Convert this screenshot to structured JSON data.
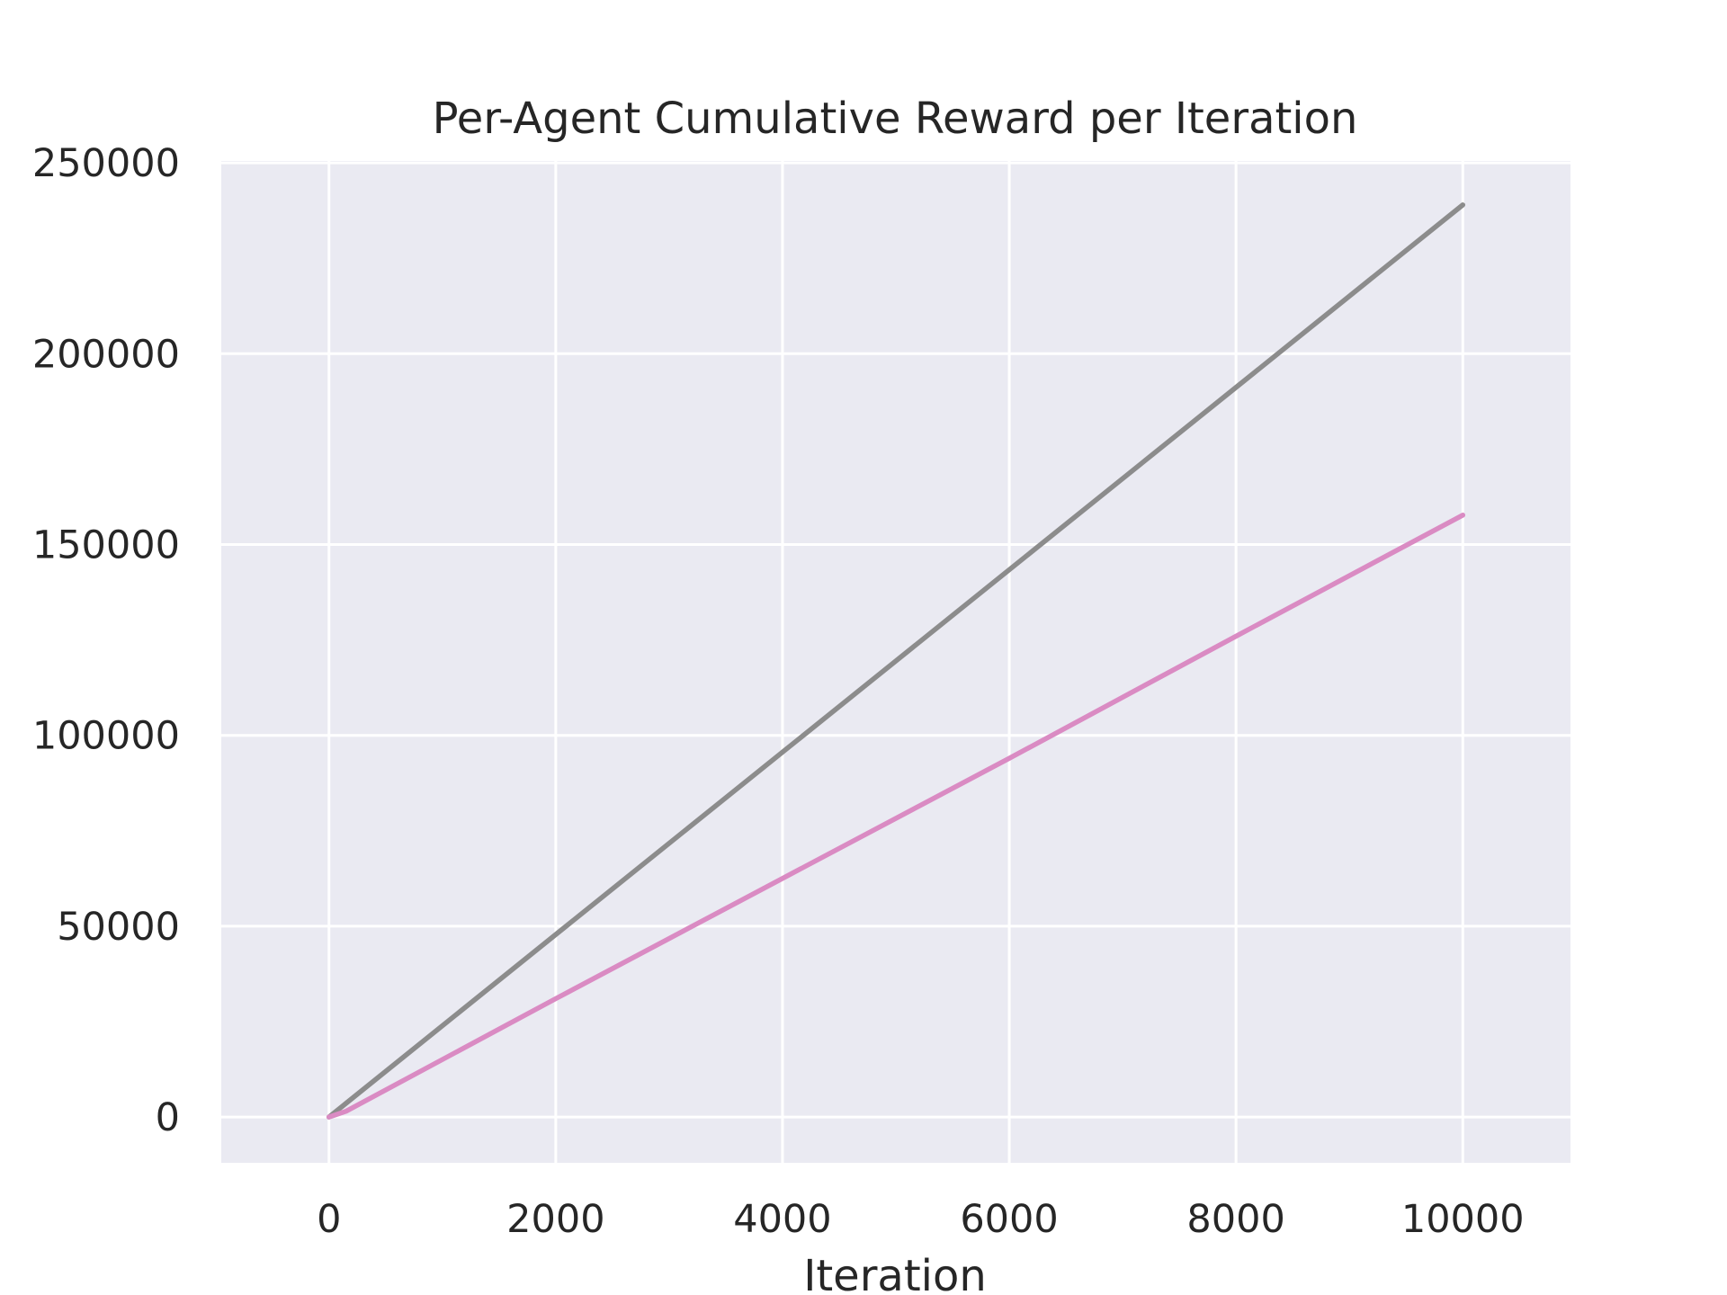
{
  "chart_data": {
    "type": "line",
    "title": "Per-Agent Cumulative Reward per Iteration",
    "xlabel": "Iteration",
    "ylabel": "",
    "xlim": [
      -950,
      10950
    ],
    "ylim": [
      -12000,
      250500
    ],
    "xticks": [
      "0",
      "2000",
      "4000",
      "6000",
      "8000",
      "10000"
    ],
    "yticks": [
      "0",
      "50000",
      "100000",
      "150000",
      "200000",
      "250000"
    ],
    "grid": true,
    "legend": "none",
    "colors": {
      "background": "#EAEAF2",
      "grid": "#FFFFFF",
      "text": "#262626"
    },
    "series": [
      {
        "color": "#8C8C8C",
        "x": [
          0,
          2000,
          4000,
          6000,
          8000,
          10000
        ],
        "y": [
          0,
          47800,
          95600,
          143400,
          191200,
          239000
        ]
      },
      {
        "color": "#DA8BC3",
        "x": [
          0,
          150,
          2000,
          4000,
          6000,
          8000,
          10000
        ],
        "y": [
          0,
          1500,
          31000,
          62500,
          94000,
          126000,
          157700
        ]
      }
    ]
  }
}
